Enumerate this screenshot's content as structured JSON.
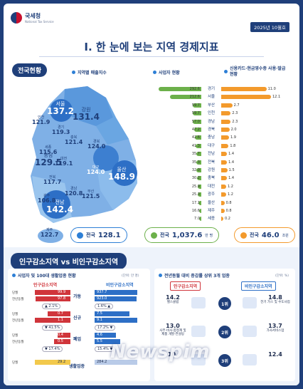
{
  "header": {
    "agency": "국세청",
    "agency_en": "National Tax Service",
    "date": "2025년 10월호"
  },
  "title": "I. 한 눈에 보는 지역 경제지표",
  "national": {
    "badge": "전국현황",
    "sales_head": "지역별 매출지수",
    "business_head": "사업자 현황",
    "card_head": "신용카드·현금영수증 사용·발급현황",
    "regions": [
      {
        "name": "서울",
        "value": "137.2"
      },
      {
        "name": "강원",
        "value": "131.4"
      },
      {
        "name": "인천",
        "value": "121.9"
      },
      {
        "name": "경기",
        "value": "119.3"
      },
      {
        "name": "충북",
        "value": "121.4"
      },
      {
        "name": "세종",
        "value": "115.6"
      },
      {
        "name": "충남",
        "value": "129.5"
      },
      {
        "name": "대전",
        "value": "119.1"
      },
      {
        "name": "경북",
        "value": "124.0"
      },
      {
        "name": "전북",
        "value": "117.7"
      },
      {
        "name": "대구",
        "value": "124.0"
      },
      {
        "name": "울산",
        "value": "148.9"
      },
      {
        "name": "광주",
        "value": "106.8"
      },
      {
        "name": "경남",
        "value": "120.8"
      },
      {
        "name": "부산",
        "value": "121.5"
      },
      {
        "name": "전남",
        "value": "142.4"
      },
      {
        "name": "제주",
        "value": "122.7"
      }
    ],
    "bars": [
      {
        "region": "경기",
        "business": "292.6",
        "card": "11.0"
      },
      {
        "region": "서울",
        "business": "212.6",
        "card": "12.1"
      },
      {
        "region": "부산",
        "business": "59.7",
        "card": "2.7"
      },
      {
        "region": "인천",
        "business": "59.7",
        "card": "2.3"
      },
      {
        "region": "경남",
        "business": "57.0",
        "card": "2.3"
      },
      {
        "region": "경북",
        "business": "47.2",
        "card": "2.0"
      },
      {
        "region": "충남",
        "business": "42.6",
        "card": "1.9"
      },
      {
        "region": "대구",
        "business": "41.3",
        "card": "1.8"
      },
      {
        "region": "전남",
        "business": "35.7",
        "card": "1.4"
      },
      {
        "region": "전북",
        "business": "35.3",
        "card": "1.4"
      },
      {
        "region": "강원",
        "business": "32.0",
        "card": "1.5"
      },
      {
        "region": "충북",
        "business": "30.2",
        "card": "1.4"
      },
      {
        "region": "대전",
        "business": "25.9",
        "card": "1.2"
      },
      {
        "region": "광주",
        "business": "25.3",
        "card": "1.2"
      },
      {
        "region": "울산",
        "business": "17.1",
        "card": "0.8"
      },
      {
        "region": "제주",
        "business": "16.6",
        "card": "0.8"
      },
      {
        "region": "세종",
        "business": "7.0",
        "card": "0.2"
      }
    ],
    "totals": {
      "sales": {
        "label": "전국",
        "value": "128.1"
      },
      "business": {
        "label": "전국",
        "value": "1,037.6",
        "unit": "만 명"
      },
      "card": {
        "label": "전국",
        "value": "46.0",
        "unit": "조원"
      }
    }
  },
  "compare": {
    "title": "인구감소지역 vs 비인구감소지역",
    "left_head": "사업자 및 100대 생활업종 현황",
    "left_unit": "(단위: 만 명)",
    "right_head": "전년동월 대비 증감률 상위 3개 업종",
    "right_unit": "(단위: %)",
    "decl": "인구감소지역",
    "nondecl": "비인구감소지역",
    "groups": [
      {
        "label": "가동",
        "rows": [
          {
            "tag": "당월",
            "decl": "99.9",
            "non": "937.7"
          },
          {
            "tag": "전년동월",
            "decl": "97.8",
            "non": "923.0"
          }
        ],
        "decl_chg": "▲ 2.1%",
        "non_chg": "1.6% ▲"
      },
      {
        "label": "신규",
        "rows": [
          {
            "tag": "당월",
            "decl": "0.7",
            "non": "7.5"
          },
          {
            "tag": "전년동월",
            "decl": "1.1",
            "non": "9.1"
          }
        ],
        "decl_chg": "▼ 41.5%",
        "non_chg": "17.2% ▼"
      },
      {
        "label": "폐업",
        "rows": [
          {
            "tag": "당월",
            "decl": "0.4",
            "non": "4.6"
          },
          {
            "tag": "전년동월",
            "decl": "0.5",
            "non": "5.5"
          }
        ],
        "decl_chg": "▼ 17.4%",
        "non_chg": "15.4% ▼"
      },
      {
        "label": "생활업종",
        "rows": [
          {
            "tag": "당월",
            "decl": "29.2",
            "non": "284.2"
          }
        ]
      }
    ],
    "ranks": [
      {
        "rank": "1위",
        "decl_value": "14.2",
        "decl_name": "헬스클럽",
        "non_value": "14.8",
        "non_name": "전기 가스 및 수도사업"
      },
      {
        "rank": "2위",
        "decl_value": "13.0",
        "decl_name": "사무·비사·합정계 및 제품 개발·컨설팅",
        "non_value": "13.7",
        "non_name": "가사서비스업"
      },
      {
        "rank": "3위",
        "decl_value": "10.",
        "decl_name": "",
        "non_value": "12.4",
        "non_name": ""
      }
    ],
    "watermark": "Newspim"
  },
  "colors": {
    "navy": "#1f3f7a",
    "green": "#6cb04a",
    "orange": "#f39a2c",
    "red": "#d0353b",
    "blue": "#2d6fc6"
  }
}
